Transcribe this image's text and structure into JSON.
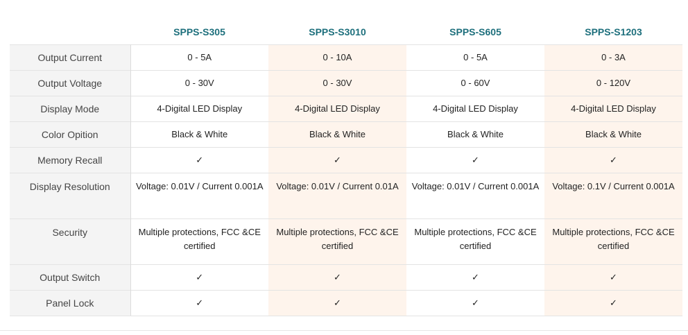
{
  "table": {
    "columns": [
      "SPPS-S305",
      "SPPS-S3010",
      "SPPS-S605",
      "SPPS-S1203"
    ],
    "rows": [
      {
        "label": "Output Current",
        "values": [
          "0 - 5A",
          "0 - 10A",
          "0 - 5A",
          "0 - 3A"
        ]
      },
      {
        "label": "Output Voltage",
        "values": [
          "0 - 30V",
          "0 - 30V",
          "0 - 60V",
          "0 - 120V"
        ]
      },
      {
        "label": "Display Mode",
        "values": [
          "4-Digital LED Display",
          "4-Digital LED Display",
          "4-Digital LED Display",
          "4-Digital LED Display"
        ]
      },
      {
        "label": "Color Opition",
        "values": [
          "Black & White",
          "Black & White",
          "Black & White",
          "Black & White"
        ]
      },
      {
        "label": "Memory Recall",
        "values": [
          "✓",
          "✓",
          "✓",
          "✓"
        ]
      },
      {
        "label": "Display Resolution",
        "values": [
          "Voltage: 0.01V / Current 0.001A",
          "Voltage: 0.01V / Current 0.01A",
          "Voltage: 0.01V / Current 0.001A",
          "Voltage: 0.1V / Current 0.001A"
        ]
      },
      {
        "label": "Security",
        "values": [
          "Multiple protections, FCC &CE certified",
          "Multiple protections, FCC &CE certified",
          "Multiple protections, FCC &CE certified",
          "Multiple protections, FCC &CE certified"
        ]
      },
      {
        "label": "Output Switch",
        "values": [
          "✓",
          "✓",
          "✓",
          "✓"
        ]
      },
      {
        "label": "Panel Lock",
        "values": [
          "✓",
          "✓",
          "✓",
          "✓"
        ]
      }
    ]
  },
  "colors": {
    "header_text": "#1d6f7c",
    "label_bg": "#f4f4f4",
    "alt_column_bg": "#fef4ec"
  }
}
